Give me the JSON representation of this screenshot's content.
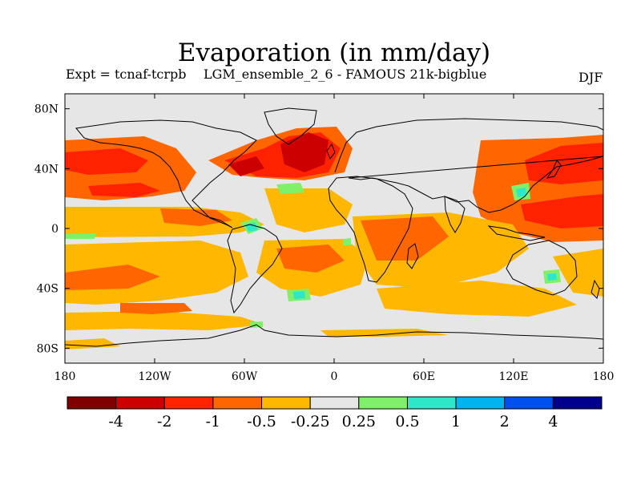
{
  "header": {
    "title": "Evaporation (in mm/day)",
    "experiment": "Expt = tcnaf-tcrpb",
    "run": "LGM_ensemble_2_6 - FAMOUS 21k-bigblue",
    "season": "DJF"
  },
  "axes": {
    "lat_ticks": [
      {
        "value": 80,
        "label": "80N"
      },
      {
        "value": 40,
        "label": "40N"
      },
      {
        "value": 0,
        "label": "0"
      },
      {
        "value": -40,
        "label": "40S"
      },
      {
        "value": -80,
        "label": "80S"
      }
    ],
    "lon_ticks": [
      {
        "value": -180,
        "label": "180"
      },
      {
        "value": -120,
        "label": "120W"
      },
      {
        "value": -60,
        "label": "60W"
      },
      {
        "value": 0,
        "label": "0"
      },
      {
        "value": 60,
        "label": "60E"
      },
      {
        "value": 120,
        "label": "120E"
      },
      {
        "value": 180,
        "label": "180"
      }
    ],
    "lat_range": [
      -90,
      90
    ],
    "lon_range": [
      -180,
      180
    ]
  },
  "colorbar": {
    "colors": [
      "#7f0000",
      "#cc0000",
      "#ff2200",
      "#ff6600",
      "#ffb700",
      "#e6e6e6",
      "#80ef6a",
      "#2ee6c8",
      "#00b4f0",
      "#0050f0",
      "#00008c"
    ],
    "labels": [
      "-4",
      "-2",
      "-1",
      "-0.5",
      "-0.25",
      "0.25",
      "0.5",
      "1",
      "2",
      "4"
    ]
  },
  "colors": {
    "neutral": "#e6e6e6",
    "coast": "#000000"
  }
}
